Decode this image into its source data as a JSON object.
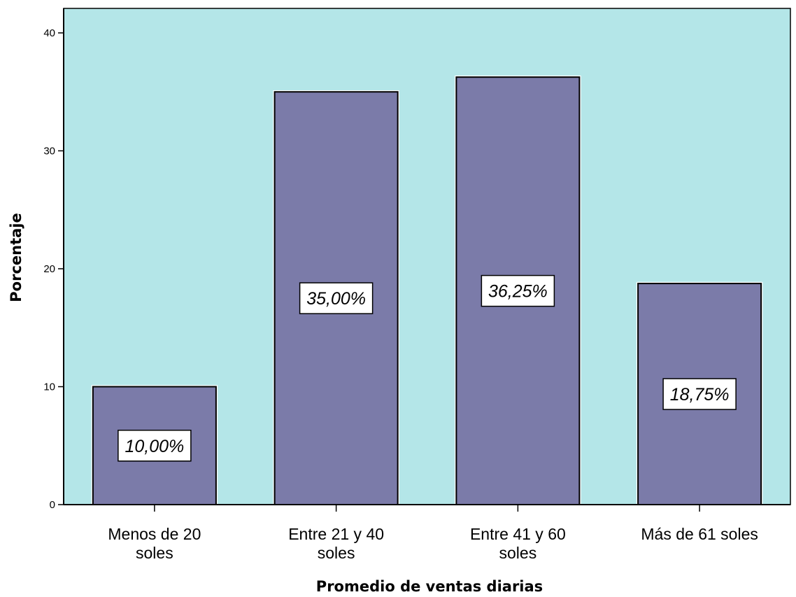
{
  "chart_data": {
    "type": "bar",
    "categories": [
      [
        "Menos de 20",
        "soles"
      ],
      [
        "Entre 21 y 40",
        "soles"
      ],
      [
        "Entre 41 y 60",
        "soles"
      ],
      [
        "Más de 61 soles"
      ]
    ],
    "values": [
      10.0,
      35.0,
      36.25,
      18.75
    ],
    "data_labels": [
      "10,00%",
      "35,00%",
      "36,25%",
      "18,75%"
    ],
    "xlabel": "Promedio de ventas diarias",
    "ylabel": "Porcentaje",
    "ylim": [
      0,
      40
    ],
    "yticks": [
      0,
      10,
      20,
      30,
      40
    ],
    "ytick_labels": [
      "0",
      "10",
      "20",
      "30",
      "40"
    ],
    "grid": false,
    "colors": {
      "plot_background": "#b4e6e8",
      "bar_fill": "#7b7ba9",
      "bar_stroke": "#000000",
      "axis": "#000000"
    }
  }
}
